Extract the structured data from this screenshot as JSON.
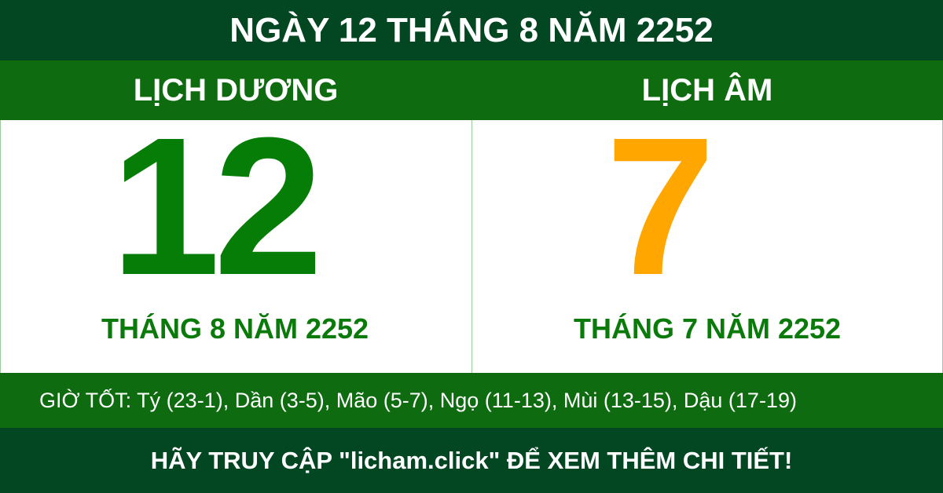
{
  "header": {
    "title": "NGÀY 12 THÁNG 8 NĂM 2252"
  },
  "solar": {
    "label": "LỊCH DƯƠNG",
    "day": "12",
    "month_year": "THÁNG 8 NĂM 2252"
  },
  "lunar": {
    "label": "LỊCH ÂM",
    "day": "7",
    "month_year": "THÁNG 7 NĂM 2252"
  },
  "good_hours": "GIỜ TỐT: Tý (23-1), Dần (3-5), Mão (5-7), Ngọ (11-13), Mùi (13-15), Dậu (17-19)",
  "footer": {
    "cta": "HÃY TRUY CẬP \"licham.click\" ĐỂ XEM THÊM CHI TIẾT!"
  },
  "colors": {
    "dark_green": "#034622",
    "band_green": "#0f6b10",
    "solar_day": "#067d06",
    "lunar_day": "#ffa600"
  }
}
